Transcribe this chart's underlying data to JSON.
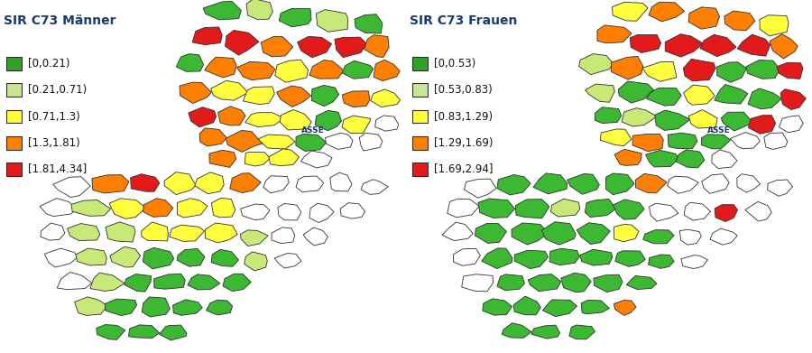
{
  "left_title": "SIR C73 Männer",
  "right_title": "SIR C73 Frauen",
  "left_legend": [
    {
      "label": "[0,0.21)",
      "color": "#33a02c"
    },
    {
      "label": "[0.21,0.71)",
      "color": "#c8e69a"
    },
    {
      "label": "[0.71,1.3)",
      "color": "#ffff33"
    },
    {
      "label": "[1.3,1.81)",
      "color": "#ff7f00"
    },
    {
      "label": "[1.81,4.34]",
      "color": "#e31a1c"
    }
  ],
  "right_legend": [
    {
      "label": "[0,0.53)",
      "color": "#33a02c"
    },
    {
      "label": "[0.53,0.83)",
      "color": "#c8e69a"
    },
    {
      "label": "[0.83,1.29)",
      "color": "#ffff33"
    },
    {
      "label": "[1.29,1.69)",
      "color": "#ff7f00"
    },
    {
      "label": "[1.69,2.94]",
      "color": "#e31a1c"
    }
  ],
  "asse_label": "ASSE",
  "background_color": "#ffffff",
  "text_color": "#1a3c6e",
  "edge_color": "#2d2d2d",
  "figure_width": 9.0,
  "figure_height": 3.91,
  "dpi": 100,
  "title_fontsize": 10,
  "legend_fontsize": 8.5,
  "legend_patch_size": 10
}
